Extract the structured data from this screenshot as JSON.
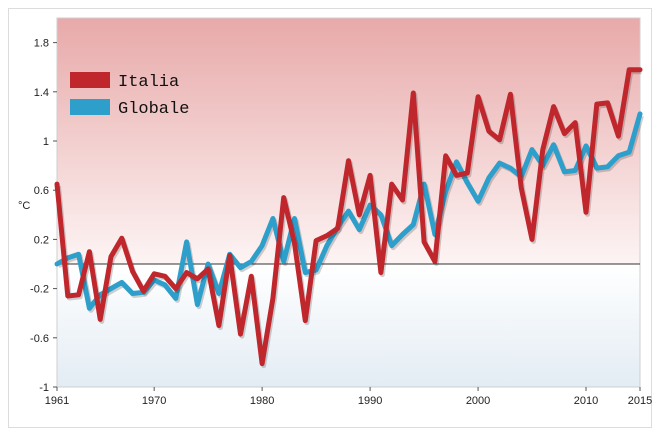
{
  "chart_data": {
    "type": "line",
    "xlabel": "",
    "ylabel": "°C",
    "xlim": [
      1961,
      2015
    ],
    "ylim": [
      -1,
      2
    ],
    "yticks": [
      -1,
      -0.6,
      -0.2,
      0.2,
      0.6,
      1,
      1.4,
      1.8
    ],
    "ytick_labels": [
      "-1",
      "-0.6",
      "-0.2",
      "0.2",
      "0.6",
      "1",
      "1.4",
      "1.8"
    ],
    "xticks": [
      1961,
      1970,
      1980,
      1990,
      2000,
      2010,
      2015
    ],
    "xtick_labels": [
      "1961",
      "1970",
      "1980",
      "1990",
      "2000",
      "2010",
      "2015"
    ],
    "baseline": 0,
    "legend_position": "top-left",
    "background": "gradient red above 0, blue below 0",
    "x": [
      1961,
      1962,
      1963,
      1964,
      1965,
      1966,
      1967,
      1968,
      1969,
      1970,
      1971,
      1972,
      1973,
      1974,
      1975,
      1976,
      1977,
      1978,
      1979,
      1980,
      1981,
      1982,
      1983,
      1984,
      1985,
      1986,
      1987,
      1988,
      1989,
      1990,
      1991,
      1992,
      1993,
      1994,
      1995,
      1996,
      1997,
      1998,
      1999,
      2000,
      2001,
      2002,
      2003,
      2004,
      2005,
      2006,
      2007,
      2008,
      2009,
      2010,
      2011,
      2012,
      2013,
      2014,
      2015
    ],
    "series": [
      {
        "name": "Italia",
        "color": "#c0272d",
        "values": [
          0.65,
          -0.26,
          -0.25,
          0.1,
          -0.45,
          0.06,
          0.21,
          -0.06,
          -0.22,
          -0.08,
          -0.1,
          -0.2,
          -0.07,
          -0.12,
          -0.04,
          -0.5,
          0.07,
          -0.57,
          -0.1,
          -0.81,
          -0.28,
          0.54,
          0.17,
          -0.46,
          0.19,
          0.23,
          0.29,
          0.84,
          0.4,
          0.72,
          -0.07,
          0.65,
          0.52,
          1.39,
          0.18,
          0.02,
          0.88,
          0.72,
          0.74,
          1.36,
          1.08,
          1.01,
          1.38,
          0.62,
          0.2,
          0.93,
          1.28,
          1.06,
          1.15,
          0.42,
          1.3,
          1.31,
          1.04,
          1.58,
          1.58
        ]
      },
      {
        "name": "Globale",
        "color": "#2e9fcb",
        "values": [
          0.0,
          0.05,
          0.08,
          -0.36,
          -0.25,
          -0.2,
          -0.15,
          -0.24,
          -0.23,
          -0.13,
          -0.17,
          -0.28,
          0.18,
          -0.33,
          0.0,
          -0.24,
          0.08,
          -0.03,
          0.02,
          0.15,
          0.37,
          0.02,
          0.37,
          -0.07,
          -0.05,
          0.15,
          0.3,
          0.43,
          0.28,
          0.48,
          0.4,
          0.15,
          0.24,
          0.32,
          0.65,
          0.24,
          0.59,
          0.83,
          0.66,
          0.51,
          0.7,
          0.82,
          0.78,
          0.71,
          0.93,
          0.8,
          0.97,
          0.75,
          0.76,
          0.96,
          0.78,
          0.79,
          0.88,
          0.91,
          1.22
        ]
      }
    ]
  }
}
